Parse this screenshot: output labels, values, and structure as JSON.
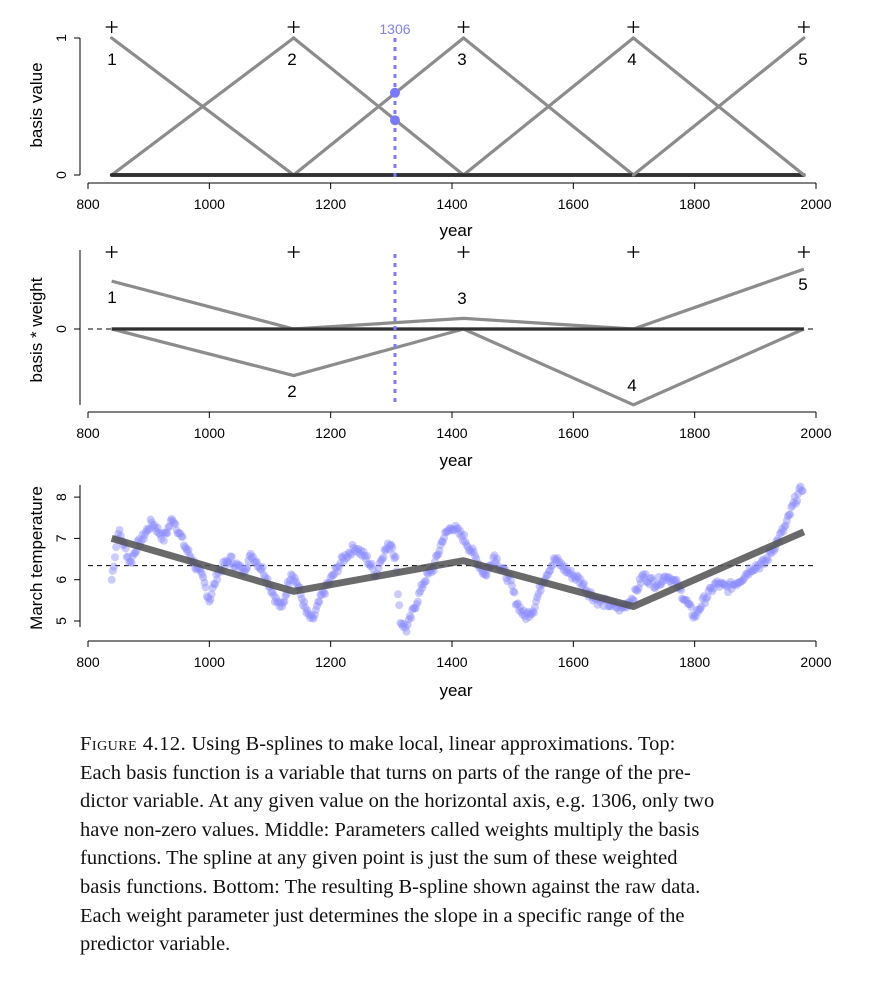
{
  "chart_data": [
    {
      "type": "line",
      "panel": "top",
      "xlabel": "year",
      "ylabel": "basis value",
      "xlim": [
        800,
        2000
      ],
      "ylim": [
        0,
        1
      ],
      "xticks": [
        "800",
        "1000",
        "1200",
        "1400",
        "1600",
        "1800",
        "2000"
      ],
      "yticks": [
        "0",
        "1"
      ],
      "knots": [
        839,
        1139,
        1419,
        1699,
        1980
      ],
      "basis_labels": [
        "1",
        "2",
        "3",
        "4",
        "5"
      ],
      "series": [
        {
          "x": [
            839,
            1139,
            1980
          ],
          "y": [
            1,
            0,
            0
          ]
        },
        {
          "x": [
            839,
            1139,
            1419,
            1980
          ],
          "y": [
            0,
            1,
            0,
            0
          ]
        },
        {
          "x": [
            839,
            1139,
            1419,
            1699,
            1980
          ],
          "y": [
            0,
            0,
            1,
            0,
            0
          ]
        },
        {
          "x": [
            839,
            1419,
            1699,
            1980
          ],
          "y": [
            0,
            0,
            1,
            0
          ]
        },
        {
          "x": [
            839,
            1699,
            1980
          ],
          "y": [
            0,
            0,
            1
          ]
        }
      ],
      "marker": {
        "x": 1306,
        "label": "1306",
        "points": [
          0.6,
          0.4
        ]
      }
    },
    {
      "type": "line",
      "panel": "middle",
      "xlabel": "year",
      "ylabel": "basis * weight",
      "xlim": [
        800,
        2000
      ],
      "xticks": [
        "800",
        "1000",
        "1200",
        "1400",
        "1600",
        "1800",
        "2000"
      ],
      "yticks": [
        "0"
      ],
      "weights": [
        0.36,
        -0.35,
        0.08,
        -0.57,
        0.45
      ],
      "basis_labels": [
        "1",
        "2",
        "3",
        "4",
        "5"
      ],
      "marker": {
        "x": 1306
      }
    },
    {
      "type": "scatter",
      "panel": "bottom",
      "xlabel": "year",
      "ylabel": "March temperature",
      "xlim": [
        800,
        2000
      ],
      "ylim": [
        4.7,
        8.5
      ],
      "xticks": [
        "800",
        "1000",
        "1200",
        "1400",
        "1600",
        "1800",
        "2000"
      ],
      "yticks": [
        "5",
        "6",
        "7",
        "8"
      ],
      "mean": 6.34,
      "raw_data_knots": [
        [
          839,
          6.0
        ],
        [
          850,
          7.2
        ],
        [
          870,
          6.4
        ],
        [
          880,
          6.8
        ],
        [
          890,
          7.0
        ],
        [
          905,
          7.4
        ],
        [
          925,
          7.0
        ],
        [
          940,
          7.5
        ],
        [
          960,
          6.8
        ],
        [
          975,
          6.4
        ],
        [
          990,
          6.0
        ],
        [
          1000,
          5.5
        ],
        [
          1015,
          6.2
        ],
        [
          1035,
          6.5
        ],
        [
          1055,
          6.2
        ],
        [
          1070,
          6.6
        ],
        [
          1090,
          6.2
        ],
        [
          1110,
          5.5
        ],
        [
          1120,
          5.3
        ],
        [
          1135,
          6.2
        ],
        [
          1145,
          5.9
        ],
        [
          1160,
          5.2
        ],
        [
          1170,
          5.0
        ],
        [
          1185,
          5.6
        ],
        [
          1200,
          6.0
        ],
        [
          1220,
          6.5
        ],
        [
          1240,
          6.8
        ],
        [
          1260,
          6.5
        ],
        [
          1275,
          6.1
        ],
        [
          1285,
          6.6
        ],
        [
          1300,
          6.9
        ],
        [
          1307,
          6.5
        ],
        [
          1315,
          5.0
        ],
        [
          1325,
          4.8
        ],
        [
          1340,
          5.4
        ],
        [
          1355,
          6.0
        ],
        [
          1370,
          6.3
        ],
        [
          1385,
          7.0
        ],
        [
          1400,
          7.3
        ],
        [
          1420,
          7.0
        ],
        [
          1440,
          6.5
        ],
        [
          1455,
          6.1
        ],
        [
          1470,
          6.6
        ],
        [
          1480,
          6.3
        ],
        [
          1495,
          6.0
        ],
        [
          1505,
          5.5
        ],
        [
          1520,
          5.1
        ],
        [
          1535,
          5.3
        ],
        [
          1550,
          6.0
        ],
        [
          1570,
          6.5
        ],
        [
          1590,
          6.2
        ],
        [
          1610,
          6.0
        ],
        [
          1625,
          5.7
        ],
        [
          1640,
          5.5
        ],
        [
          1660,
          5.4
        ],
        [
          1680,
          5.3
        ],
        [
          1700,
          5.6
        ],
        [
          1715,
          6.1
        ],
        [
          1735,
          5.9
        ],
        [
          1755,
          6.1
        ],
        [
          1770,
          5.9
        ],
        [
          1785,
          5.5
        ],
        [
          1800,
          5.1
        ],
        [
          1815,
          5.5
        ],
        [
          1835,
          5.9
        ],
        [
          1855,
          5.8
        ],
        [
          1875,
          6.0
        ],
        [
          1895,
          6.3
        ],
        [
          1915,
          6.4
        ],
        [
          1935,
          6.9
        ],
        [
          1950,
          7.3
        ],
        [
          1965,
          7.9
        ],
        [
          1980,
          8.3
        ]
      ],
      "spline": {
        "x": [
          839,
          1139,
          1419,
          1699,
          1980
        ],
        "y": [
          7.0,
          5.72,
          6.46,
          5.35,
          7.16
        ]
      }
    }
  ],
  "caption": {
    "figure_label": "Figure 4.12.",
    "lines": [
      "Using B-splines to make local, linear approximations.  Top:",
      "Each basis function is a variable that turns on parts of the range of the pre-",
      "dictor variable.  At any given value on the horizontal axis, e.g. 1306, only two",
      "have non-zero values.  Middle: Parameters called weights multiply the basis",
      "functions.  The spline at any given point is just the sum of these weighted",
      "basis functions.  Bottom: The resulting B-spline shown against the raw data.",
      "Each weight parameter just determines the slope in a specific range of the",
      "predictor variable."
    ]
  },
  "colors": {
    "basis_line": "#8c8c8c",
    "basis_dark": "#303030",
    "marker": "#7a7aff",
    "points": "#8c8cff",
    "spline": "#505050"
  }
}
